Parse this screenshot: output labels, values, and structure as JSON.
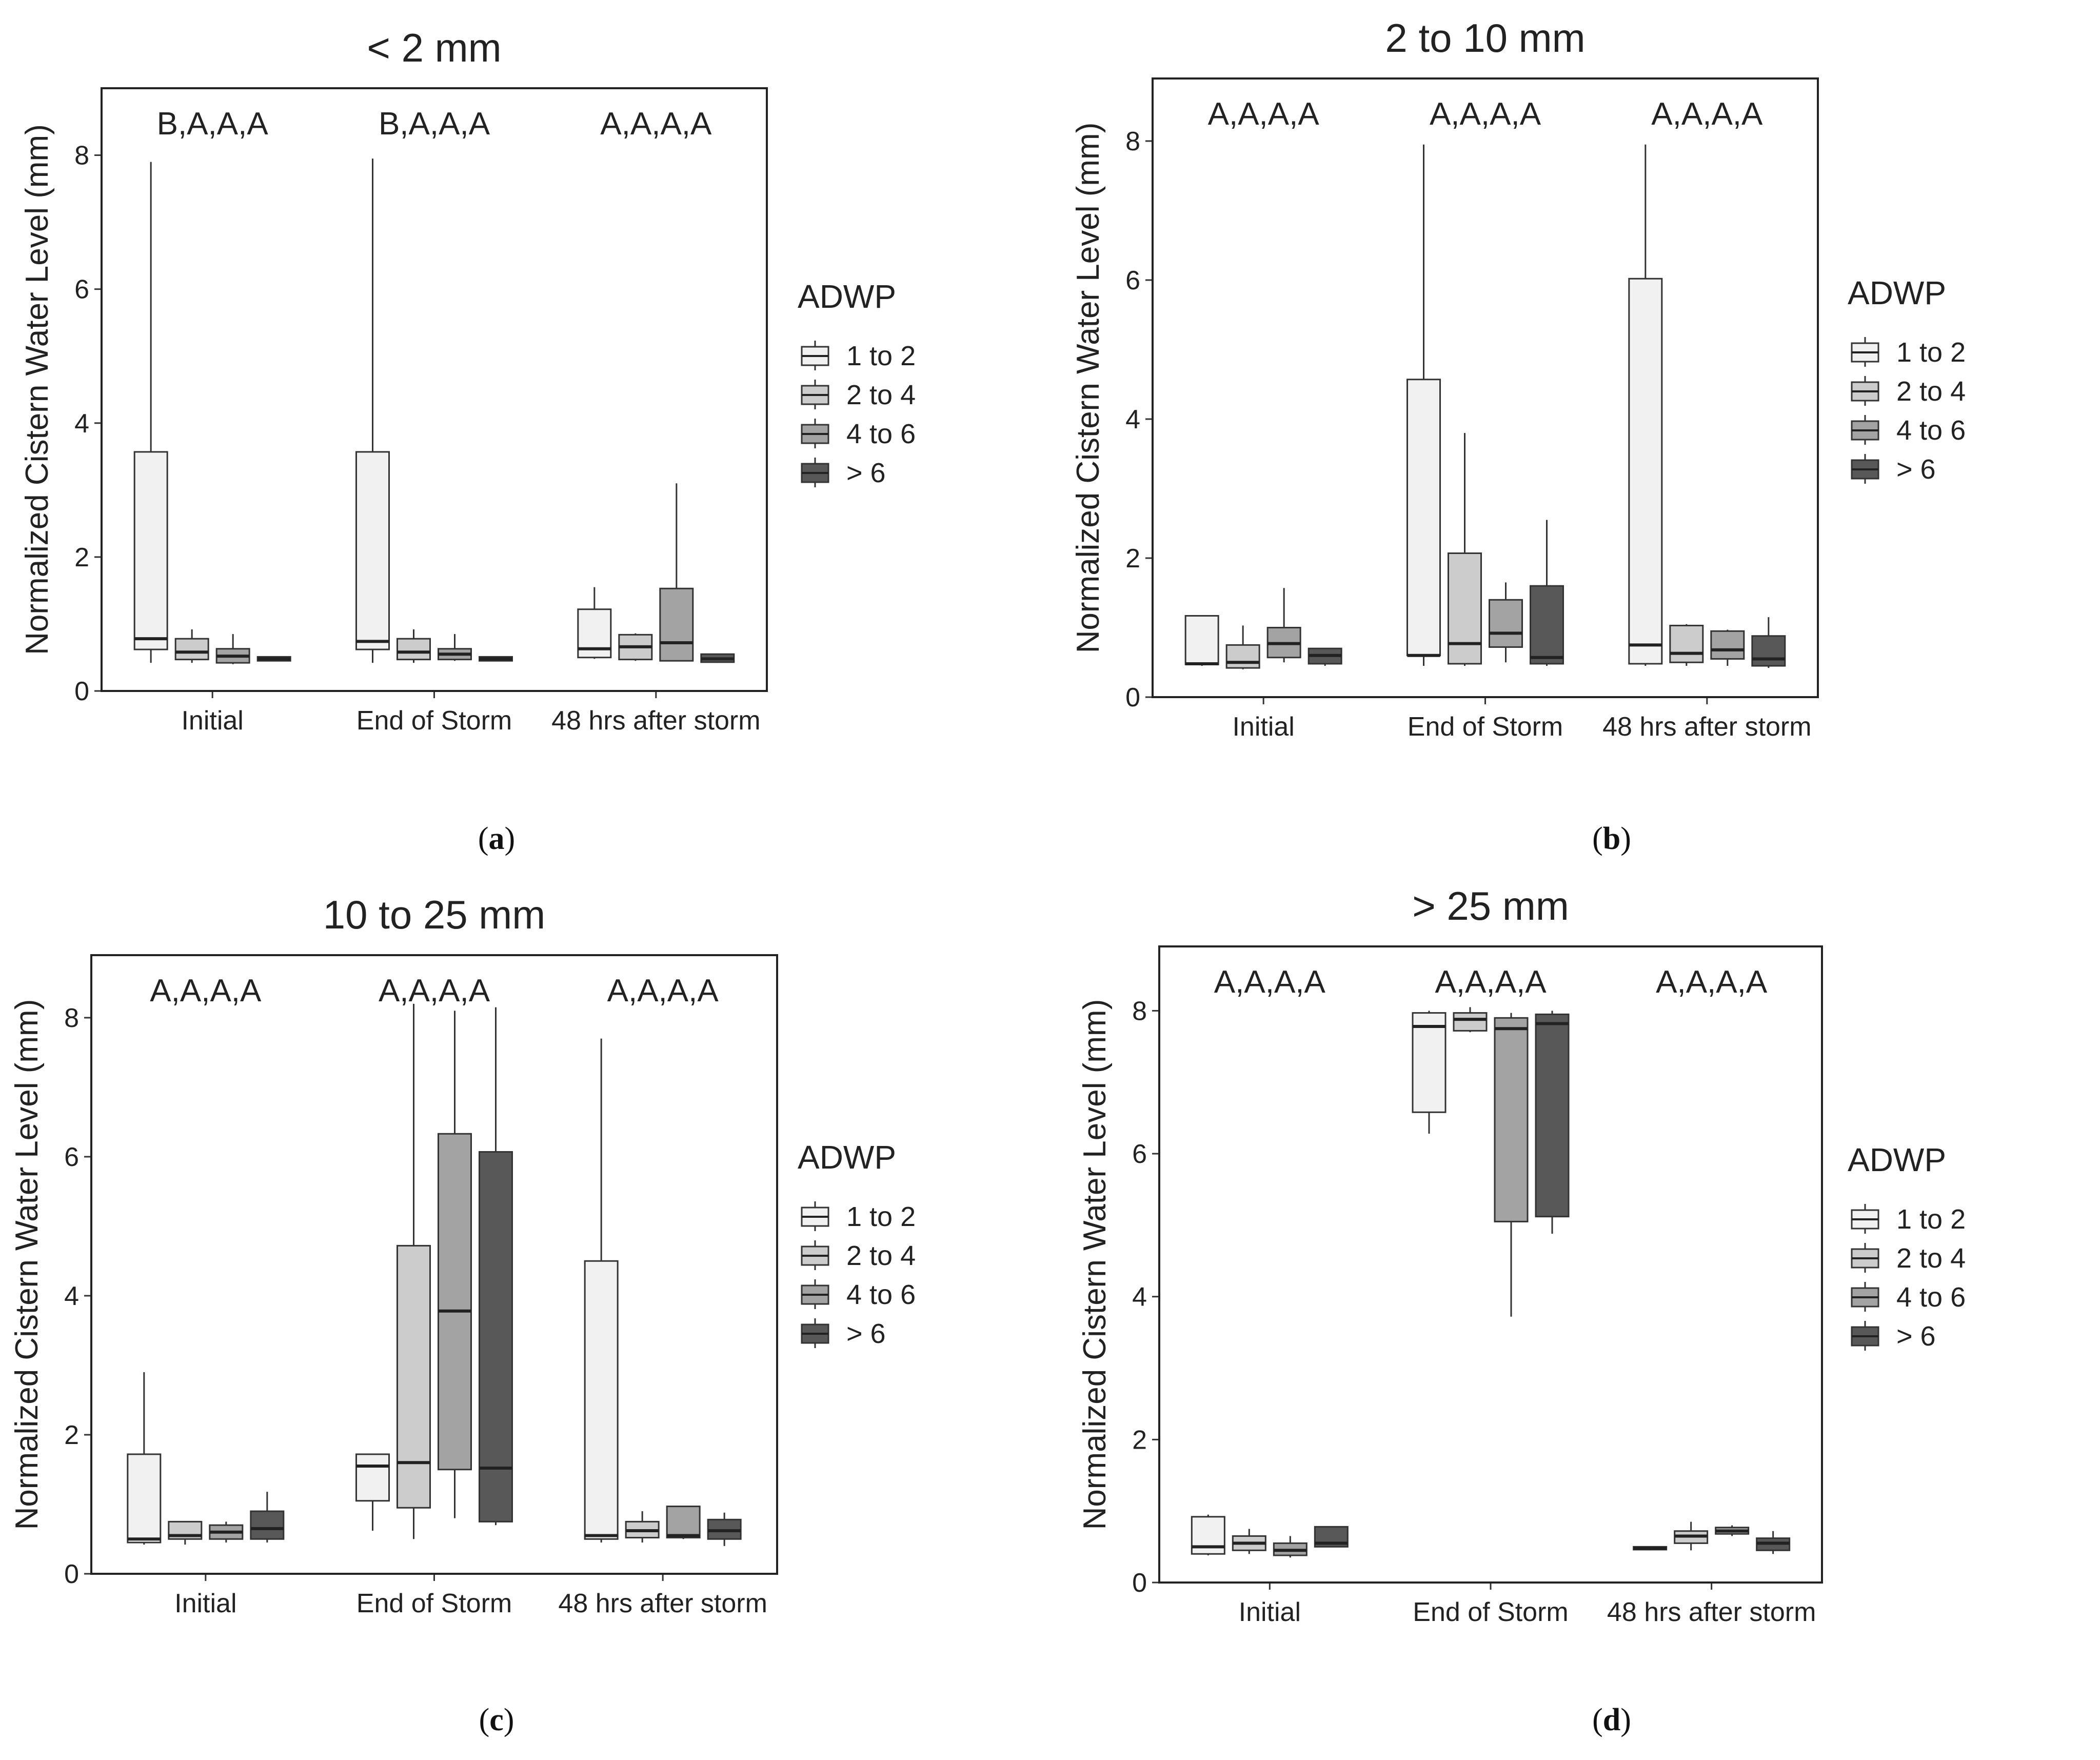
{
  "legend": {
    "title": "ADWP",
    "items": [
      "1 to 2",
      "2 to 4",
      "4 to 6",
      "> 6"
    ],
    "colors": [
      "#f1f1f1",
      "#cccccc",
      "#a3a3a3",
      "#585858"
    ]
  },
  "captions": [
    "a",
    "b",
    "c",
    "d"
  ],
  "chart_data": [
    {
      "type": "box",
      "title": "< 2 mm",
      "ylabel": "Normalized Cistern Water Level (mm)",
      "ylim": [
        0,
        9
      ],
      "yticks": [
        "0",
        "2",
        "4",
        "6",
        "8"
      ],
      "categories": [
        "Initial",
        "End of Storm",
        "48 hrs after storm"
      ],
      "letters": [
        "B,A,A,A",
        "B,A,A,A",
        "A,A,A,A"
      ],
      "series": [
        {
          "name": "1 to 2",
          "boxes": [
            [
              0.42,
              0.62,
              0.78,
              3.57,
              7.9
            ],
            [
              0.42,
              0.62,
              0.74,
              3.57,
              7.95
            ],
            [
              0.48,
              0.5,
              0.63,
              1.22,
              1.55
            ]
          ]
        },
        {
          "name": "2 to 4",
          "boxes": [
            [
              0.42,
              0.47,
              0.58,
              0.78,
              0.92
            ],
            [
              0.42,
              0.47,
              0.58,
              0.78,
              0.92
            ],
            [
              0.45,
              0.47,
              0.66,
              0.84,
              0.86
            ]
          ]
        },
        {
          "name": "4 to 6",
          "boxes": [
            [
              0.4,
              0.42,
              0.52,
              0.63,
              0.85
            ],
            [
              0.45,
              0.47,
              0.55,
              0.63,
              0.85
            ],
            [
              0.45,
              0.45,
              0.72,
              1.53,
              3.1
            ]
          ]
        },
        {
          "name": "> 6",
          "boxes": [
            [
              0.45,
              0.45,
              0.48,
              0.51,
              0.51
            ],
            [
              0.45,
              0.45,
              0.48,
              0.51,
              0.51
            ],
            [
              0.42,
              0.43,
              0.48,
              0.55,
              0.55
            ]
          ]
        }
      ]
    },
    {
      "type": "box",
      "title": "2 to 10 mm",
      "ylabel": "Normalized Cistern Water Level (mm)",
      "ylim": [
        0,
        8.9
      ],
      "yticks": [
        "0",
        "2",
        "4",
        "6",
        "8"
      ],
      "categories": [
        "Initial",
        "End of Storm",
        "48 hrs after storm"
      ],
      "letters": [
        "A,A,A,A",
        "A,A,A,A",
        "A,A,A,A"
      ],
      "series": [
        {
          "name": "1 to 2",
          "boxes": [
            [
              0.45,
              0.47,
              0.48,
              1.17,
              1.17
            ],
            [
              0.45,
              0.6,
              0.6,
              4.57,
              7.95
            ],
            [
              0.45,
              0.48,
              0.75,
              6.02,
              7.95
            ]
          ]
        },
        {
          "name": "2 to 4",
          "boxes": [
            [
              0.4,
              0.42,
              0.5,
              0.75,
              1.03
            ],
            [
              0.45,
              0.48,
              0.77,
              2.07,
              3.8
            ],
            [
              0.45,
              0.5,
              0.63,
              1.03,
              1.05
            ]
          ]
        },
        {
          "name": "4 to 6",
          "boxes": [
            [
              0.5,
              0.57,
              0.77,
              1.0,
              1.57
            ],
            [
              0.5,
              0.72,
              0.92,
              1.4,
              1.65
            ],
            [
              0.45,
              0.55,
              0.68,
              0.95,
              0.97
            ]
          ]
        },
        {
          "name": "> 6",
          "boxes": [
            [
              0.45,
              0.48,
              0.6,
              0.7,
              0.7
            ],
            [
              0.45,
              0.48,
              0.57,
              1.6,
              2.55
            ],
            [
              0.42,
              0.45,
              0.55,
              0.88,
              1.15
            ]
          ]
        }
      ]
    },
    {
      "type": "box",
      "title": "10 to 25 mm",
      "ylabel": "Normalized Cistern Water Level (mm)",
      "ylim": [
        0,
        8.9
      ],
      "yticks": [
        "0",
        "2",
        "4",
        "6",
        "8"
      ],
      "categories": [
        "Initial",
        "End of Storm",
        "48 hrs after storm"
      ],
      "letters": [
        "A,A,A,A",
        "A,A,A,A",
        "A,A,A,A"
      ],
      "series": [
        {
          "name": "1 to 2",
          "boxes": [
            [
              0.42,
              0.45,
              0.5,
              1.72,
              2.9
            ],
            [
              0.62,
              1.05,
              1.55,
              1.72,
              1.72
            ],
            [
              0.45,
              0.5,
              0.55,
              4.5,
              7.7
            ]
          ]
        },
        {
          "name": "2 to 4",
          "boxes": [
            [
              0.42,
              0.5,
              0.55,
              0.75,
              0.75
            ],
            [
              0.5,
              0.95,
              1.6,
              4.72,
              8.2
            ],
            [
              0.45,
              0.52,
              0.62,
              0.75,
              0.9
            ]
          ]
        },
        {
          "name": "4 to 6",
          "boxes": [
            [
              0.45,
              0.5,
              0.6,
              0.7,
              0.75
            ],
            [
              0.8,
              1.5,
              3.78,
              6.33,
              8.1
            ],
            [
              0.5,
              0.52,
              0.55,
              0.97,
              0.97
            ]
          ]
        },
        {
          "name": "> 6",
          "boxes": [
            [
              0.45,
              0.5,
              0.65,
              0.9,
              1.18
            ],
            [
              0.7,
              0.75,
              1.52,
              6.07,
              8.15
            ],
            [
              0.4,
              0.5,
              0.62,
              0.78,
              0.88
            ]
          ]
        }
      ]
    },
    {
      "type": "box",
      "title": "> 25 mm",
      "ylabel": "Normalized Cistern Water Level (mm)",
      "ylim": [
        0,
        8.9
      ],
      "yticks": [
        "0",
        "2",
        "4",
        "6",
        "8"
      ],
      "categories": [
        "Initial",
        "End of Storm",
        "48 hrs after storm"
      ],
      "letters": [
        "A,A,A,A",
        "A,A,A,A",
        "A,A,A,A"
      ],
      "series": [
        {
          "name": "1 to 2",
          "boxes": [
            [
              0.38,
              0.4,
              0.5,
              0.92,
              0.95
            ],
            [
              6.28,
              6.58,
              7.78,
              7.97,
              8.0
            ],
            [
              0.45,
              0.46,
              0.48,
              0.5,
              0.5
            ]
          ]
        },
        {
          "name": "2 to 4",
          "boxes": [
            [
              0.4,
              0.45,
              0.55,
              0.65,
              0.75
            ],
            [
              7.7,
              7.72,
              7.88,
              7.97,
              8.05
            ],
            [
              0.45,
              0.55,
              0.65,
              0.72,
              0.85
            ]
          ]
        },
        {
          "name": "4 to 6",
          "boxes": [
            [
              0.35,
              0.38,
              0.45,
              0.55,
              0.65
            ],
            [
              3.72,
              5.05,
              7.75,
              7.9,
              7.97
            ],
            [
              0.65,
              0.68,
              0.72,
              0.77,
              0.8
            ]
          ]
        },
        {
          "name": "> 6",
          "boxes": [
            [
              0.5,
              0.5,
              0.55,
              0.78,
              0.78
            ],
            [
              4.88,
              5.12,
              7.82,
              7.95,
              8.0
            ],
            [
              0.4,
              0.45,
              0.55,
              0.62,
              0.72
            ]
          ]
        }
      ]
    }
  ]
}
